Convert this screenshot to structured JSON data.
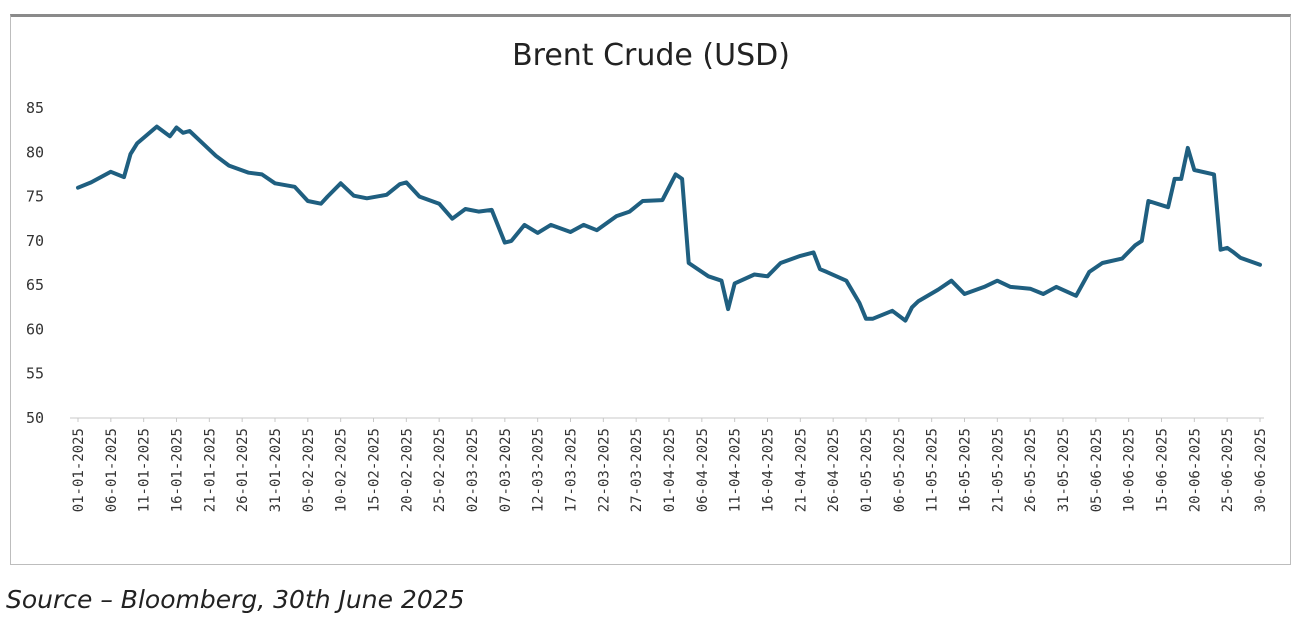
{
  "chart_data": {
    "type": "line",
    "title": "Brent Crude (USD)",
    "xlabel": "",
    "ylabel": "",
    "ylim": [
      50,
      85
    ],
    "yticks": [
      50,
      55,
      60,
      65,
      70,
      75,
      80,
      85
    ],
    "xlim": [
      "2025-01-01",
      "2025-06-30"
    ],
    "x_tick_labels": [
      "01-01-2025",
      "06-01-2025",
      "11-01-2025",
      "16-01-2025",
      "21-01-2025",
      "26-01-2025",
      "31-01-2025",
      "05-02-2025",
      "10-02-2025",
      "15-02-2025",
      "20-02-2025",
      "25-02-2025",
      "02-03-2025",
      "07-03-2025",
      "12-03-2025",
      "17-03-2025",
      "22-03-2025",
      "27-03-2025",
      "01-04-2025",
      "06-04-2025",
      "11-04-2025",
      "16-04-2025",
      "21-04-2025",
      "26-04-2025",
      "01-05-2025",
      "06-05-2025",
      "11-05-2025",
      "16-05-2025",
      "21-05-2025",
      "26-05-2025",
      "31-05-2025",
      "05-06-2025",
      "10-06-2025",
      "15-06-2025",
      "20-06-2025",
      "25-06-2025",
      "30-06-2025"
    ],
    "line_color": "#1f5f80",
    "grid": false,
    "legend": "none",
    "series": [
      {
        "x": [
          "2025-01-01",
          "2025-01-03",
          "2025-01-06",
          "2025-01-08",
          "2025-01-09",
          "2025-01-10",
          "2025-01-13",
          "2025-01-15",
          "2025-01-16",
          "2025-01-17",
          "2025-01-18",
          "2025-01-20",
          "2025-01-22",
          "2025-01-24",
          "2025-01-27",
          "2025-01-29",
          "2025-01-31",
          "2025-02-03",
          "2025-02-05",
          "2025-02-07",
          "2025-02-08",
          "2025-02-10",
          "2025-02-12",
          "2025-02-14",
          "2025-02-17",
          "2025-02-19",
          "2025-02-20",
          "2025-02-22",
          "2025-02-25",
          "2025-02-27",
          "2025-03-01",
          "2025-03-03",
          "2025-03-05",
          "2025-03-07",
          "2025-03-08",
          "2025-03-10",
          "2025-03-12",
          "2025-03-14",
          "2025-03-17",
          "2025-03-19",
          "2025-03-21",
          "2025-03-24",
          "2025-03-26",
          "2025-03-28",
          "2025-03-31",
          "2025-04-02",
          "2025-04-03",
          "2025-04-04",
          "2025-04-07",
          "2025-04-09",
          "2025-04-10",
          "2025-04-11",
          "2025-04-14",
          "2025-04-16",
          "2025-04-18",
          "2025-04-21",
          "2025-04-23",
          "2025-04-24",
          "2025-04-25",
          "2025-04-28",
          "2025-04-30",
          "2025-05-01",
          "2025-05-02",
          "2025-05-05",
          "2025-05-07",
          "2025-05-08",
          "2025-05-09",
          "2025-05-12",
          "2025-05-14",
          "2025-05-16",
          "2025-05-19",
          "2025-05-21",
          "2025-05-23",
          "2025-05-26",
          "2025-05-28",
          "2025-05-30",
          "2025-06-02",
          "2025-06-04",
          "2025-06-06",
          "2025-06-09",
          "2025-06-11",
          "2025-06-12",
          "2025-06-13",
          "2025-06-16",
          "2025-06-17",
          "2025-06-18",
          "2025-06-19",
          "2025-06-20",
          "2025-06-23",
          "2025-06-24",
          "2025-06-25",
          "2025-06-26",
          "2025-06-27",
          "2025-06-30"
        ],
        "values": [
          76,
          76.6,
          77.8,
          77.2,
          79.8,
          81,
          82.9,
          81.8,
          82.8,
          82.2,
          82.4,
          81,
          79.6,
          78.5,
          77.7,
          77.5,
          76.5,
          76.1,
          74.5,
          74.2,
          75,
          76.5,
          75.1,
          74.8,
          75.2,
          76.4,
          76.6,
          75,
          74.2,
          72.5,
          73.6,
          73.3,
          73.5,
          69.8,
          70,
          71.8,
          70.9,
          71.8,
          71,
          71.8,
          71.2,
          72.8,
          73.3,
          74.5,
          74.6,
          77.5,
          77,
          67.5,
          66,
          65.5,
          62.3,
          65.2,
          66.2,
          66,
          67.5,
          68.3,
          68.7,
          66.8,
          66.5,
          65.5,
          63,
          61.2,
          61.2,
          62.1,
          61,
          62.5,
          63.2,
          64.5,
          65.5,
          64,
          64.8,
          65.5,
          64.8,
          64.6,
          64,
          64.8,
          63.8,
          66.5,
          67.5,
          68,
          69.5,
          70,
          74.5,
          73.8,
          77,
          77,
          80.5,
          78,
          77.5,
          69,
          69.2,
          68.7,
          68.1,
          67.3
        ]
      }
    ]
  },
  "source": "Source – Bloomberg, 30th June 2025"
}
